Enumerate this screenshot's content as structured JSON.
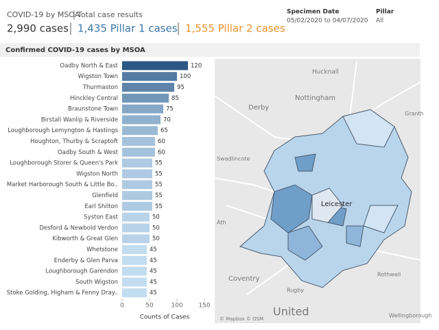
{
  "header": {
    "title": "COVID-19 by MSOA",
    "subtitle": "Total case results",
    "total": "2,990 cases",
    "pillar1": "1,435 Pillar 1 cases",
    "pillar2": "1,555 Pillar 2 cases"
  },
  "filters": {
    "date_label": "Specimen Date",
    "date_value": "05/02/2020 to 04/07/2020",
    "pillar_label": "Pillar",
    "pillar_value": "All"
  },
  "chart_data": {
    "type": "hbar",
    "title": "Confirmed COVID-19 cases by MSOA",
    "x_label": "Counts of Cases",
    "categories": [
      "Oadby North & East",
      "Wigston Town",
      "Thurmaston",
      "Hinckley Central",
      "Braunstone Town",
      "Birstall Wanlip & Riverside",
      "Loughborough Lemyngton & Hastings",
      "Houghton, Thurby & Scraptoft",
      "Oadby South & West",
      "Loughborough Storer & Queen's Park",
      "Wigston North",
      "Market Harborough South & Little Bo..",
      "Glenfield",
      "Earl Shilton",
      "Syston East",
      "Desford & Newbold Verdon",
      "Kibworth & Great Glen",
      "Whetstone",
      "Enderby & Glen Parva",
      "Loughborough Garendon",
      "South Wigston",
      "Stoke Golding, Higham & Fenny Dray.."
    ],
    "values": [
      120,
      100,
      95,
      85,
      75,
      70,
      65,
      60,
      60,
      55,
      55,
      55,
      55,
      55,
      50,
      50,
      50,
      45,
      45,
      45,
      45,
      45
    ],
    "xlim": [
      0,
      150
    ],
    "xticks": [
      0,
      50,
      100,
      150
    ],
    "color_range": [
      "#c2dcf0",
      "#2c5886"
    ]
  },
  "map": {
    "labels": [
      "Hucknall",
      "Nottingham",
      "Derby",
      "Granth",
      "Swadlincote",
      "Leicester",
      "Ath",
      "Coventry",
      "Rothwell",
      "Rugby",
      "United",
      "Wellingborough",
      "© Mapbox © OSM"
    ]
  }
}
